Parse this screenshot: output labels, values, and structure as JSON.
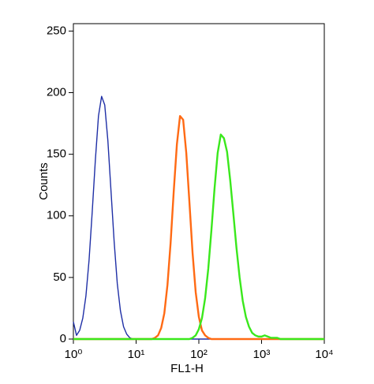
{
  "chart_data": {
    "type": "line",
    "xlabel": "FL1-H",
    "ylabel": "Counts",
    "xscale": "log",
    "xlim": [
      1,
      10000
    ],
    "ylim": [
      0,
      256
    ],
    "xticks": [
      {
        "value": 1,
        "label": "10⁰"
      },
      {
        "value": 10,
        "label": "10¹"
      },
      {
        "value": 100,
        "label": "10²"
      },
      {
        "value": 1000,
        "label": "10³"
      },
      {
        "value": 10000,
        "label": "10⁴"
      }
    ],
    "yticks": [
      0,
      50,
      100,
      150,
      200,
      250
    ],
    "x": [
      1,
      1.122,
      1.259,
      1.413,
      1.585,
      1.778,
      1.995,
      2.239,
      2.512,
      2.818,
      3.162,
      3.548,
      3.981,
      4.467,
      5.012,
      5.623,
      6.31,
      7.079,
      7.943,
      8.913,
      10,
      11.22,
      12.59,
      14.13,
      15.85,
      17.78,
      19.95,
      22.39,
      25.12,
      28.18,
      31.62,
      35.48,
      39.81,
      44.67,
      50.12,
      56.23,
      63.1,
      70.79,
      79.43,
      89.13,
      100,
      112.2,
      125.9,
      141.3,
      158.5,
      177.8,
      199.5,
      223.9,
      251.2,
      281.8,
      316.2,
      354.8,
      398.1,
      446.7,
      501.2,
      562.3,
      631,
      707.9,
      794.3,
      891.3,
      1000,
      1122,
      1259,
      1413,
      1585,
      1778,
      1995,
      2239,
      2512,
      2818,
      3162,
      3548,
      3981,
      4467,
      5012,
      5623,
      6310,
      7079,
      7943,
      8913,
      10000
    ],
    "series": [
      {
        "color": "#1f2fa6",
        "values": [
          14,
          3,
          7,
          17,
          35,
          64,
          103,
          145,
          181,
          197,
          190,
          161,
          120,
          79,
          45,
          23,
          10,
          4,
          1,
          0,
          0,
          0,
          0,
          0,
          0,
          0,
          0,
          0,
          0,
          0,
          0,
          0,
          0,
          0,
          0,
          0,
          0,
          0,
          0,
          0,
          0,
          0,
          0,
          0,
          0,
          0,
          0,
          0,
          0,
          0,
          0,
          0,
          0,
          0,
          0,
          0,
          0,
          0,
          0,
          0,
          0,
          0,
          0,
          0,
          0,
          0,
          0,
          0,
          0,
          0,
          0,
          0,
          0,
          0,
          0,
          0,
          0,
          0,
          0,
          0,
          0
        ]
      },
      {
        "color": "#ff6a14",
        "values": [
          0,
          0,
          0,
          0,
          0,
          0,
          0,
          0,
          0,
          0,
          0,
          0,
          0,
          0,
          0,
          0,
          0,
          0,
          0,
          0,
          0,
          0,
          0,
          0,
          0,
          0,
          1,
          3,
          9,
          21,
          44,
          78,
          120,
          158,
          181,
          178,
          151,
          111,
          70,
          38,
          18,
          7,
          3,
          1,
          0,
          0,
          0,
          0,
          0,
          0,
          0,
          0,
          0,
          0,
          0,
          0,
          0,
          0,
          0,
          0,
          0,
          0,
          0,
          0,
          0,
          0,
          0,
          0,
          0,
          0,
          0,
          0,
          0,
          0,
          0,
          0,
          0,
          0,
          0,
          0,
          0
        ]
      },
      {
        "color": "#3ae81c",
        "values": [
          0,
          0,
          0,
          0,
          0,
          0,
          0,
          0,
          0,
          0,
          0,
          0,
          0,
          0,
          0,
          0,
          0,
          0,
          0,
          0,
          0,
          0,
          0,
          0,
          0,
          0,
          0,
          0,
          0,
          0,
          0,
          0,
          0,
          0,
          0,
          0,
          0,
          0,
          1,
          3,
          8,
          17,
          33,
          57,
          88,
          122,
          151,
          166,
          163,
          152,
          129,
          102,
          74,
          50,
          31,
          18,
          10,
          5,
          3,
          2,
          2,
          3,
          2,
          1,
          1,
          1,
          0,
          0,
          0,
          0,
          0,
          0,
          0,
          0,
          0,
          0,
          0,
          0,
          0,
          0,
          0
        ]
      }
    ]
  }
}
